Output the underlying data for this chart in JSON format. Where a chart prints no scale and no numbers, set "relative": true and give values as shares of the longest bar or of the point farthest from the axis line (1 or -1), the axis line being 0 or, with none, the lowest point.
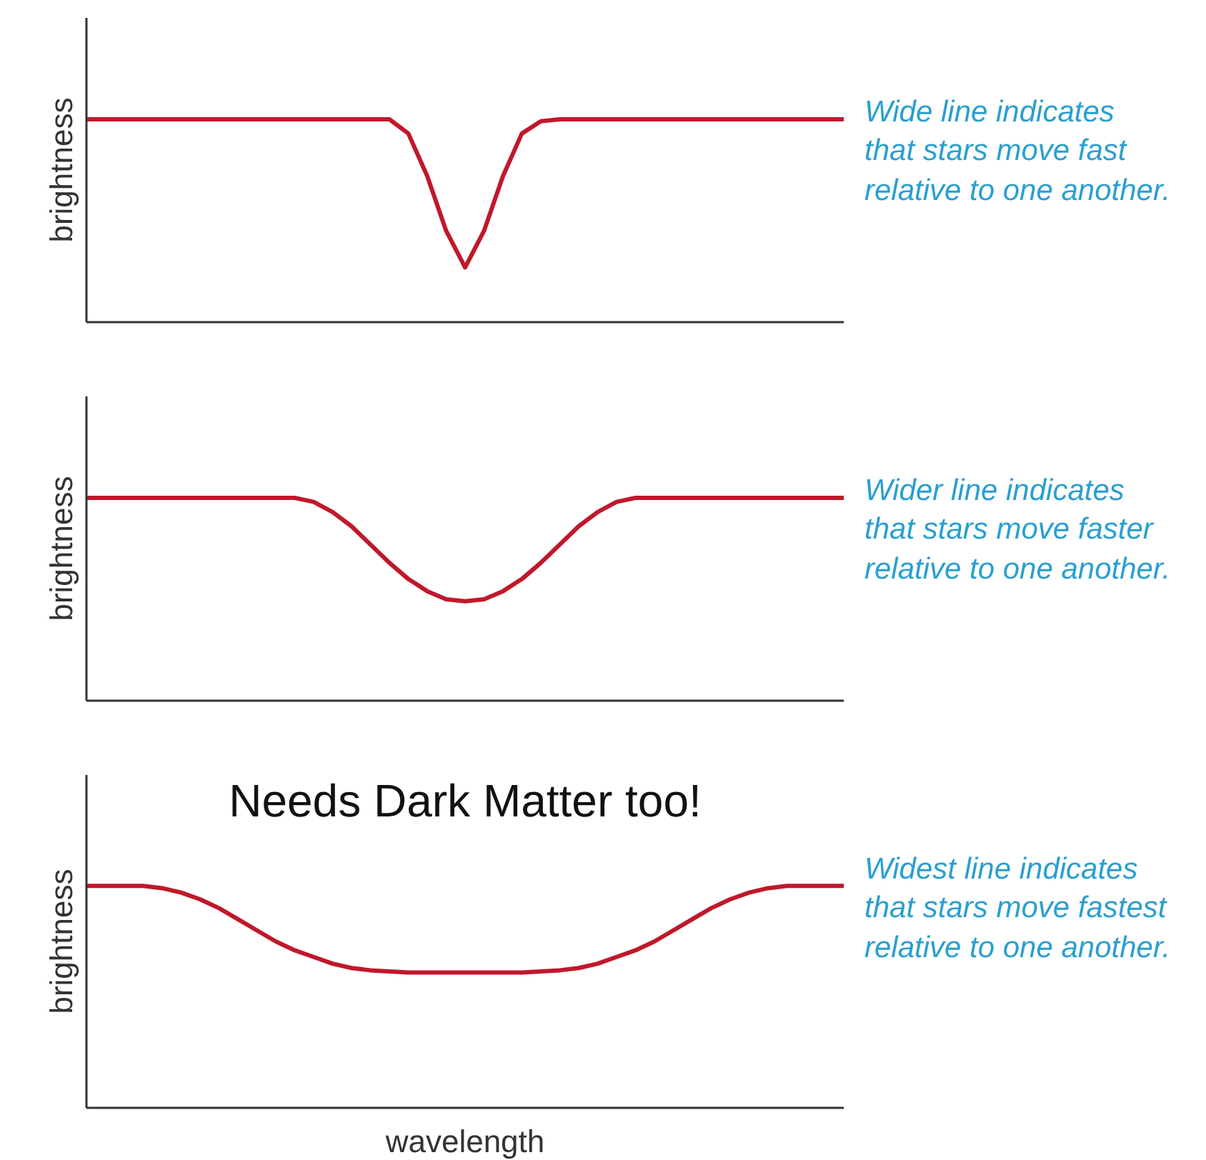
{
  "chart_data": [
    {
      "type": "line",
      "relative": true,
      "ylabel": "brightness",
      "grid": false,
      "marker": "none",
      "line_style": "solid",
      "categories": [
        null,
        null,
        null,
        null,
        null,
        null,
        null,
        null,
        null,
        null,
        null,
        null,
        null,
        null,
        null,
        null,
        null,
        null,
        null,
        null,
        null,
        null,
        null,
        null,
        null,
        null,
        null,
        null,
        null,
        null,
        null,
        null,
        null,
        null,
        null,
        null,
        null,
        null,
        null,
        null,
        null
      ],
      "series": [
        {
          "color": "#c0182a",
          "values": [
            1,
            1,
            1,
            1,
            1,
            1,
            1,
            1,
            1,
            1,
            1,
            1,
            1,
            1,
            1,
            1,
            1,
            0.93,
            0.72,
            0.45,
            0.27,
            0.45,
            0.72,
            0.93,
            0.99,
            1,
            1,
            1,
            1,
            1,
            1,
            1,
            1,
            1,
            1,
            1,
            1,
            1,
            1,
            1,
            1
          ]
        }
      ],
      "annotations": [
        "Wide line indicates\nthat stars move fast\nrelative to one another."
      ]
    },
    {
      "type": "line",
      "relative": true,
      "ylabel": "brightness",
      "grid": false,
      "marker": "none",
      "line_style": "solid",
      "categories": [
        null,
        null,
        null,
        null,
        null,
        null,
        null,
        null,
        null,
        null,
        null,
        null,
        null,
        null,
        null,
        null,
        null,
        null,
        null,
        null,
        null,
        null,
        null,
        null,
        null,
        null,
        null,
        null,
        null,
        null,
        null,
        null,
        null,
        null,
        null,
        null,
        null,
        null,
        null,
        null,
        null
      ],
      "series": [
        {
          "color": "#c0182a",
          "values": [
            1,
            1,
            1,
            1,
            1,
            1,
            1,
            1,
            1,
            1,
            1,
            1,
            0.98,
            0.93,
            0.86,
            0.77,
            0.68,
            0.6,
            0.54,
            0.5,
            0.49,
            0.5,
            0.54,
            0.6,
            0.68,
            0.77,
            0.86,
            0.93,
            0.98,
            1,
            1,
            1,
            1,
            1,
            1,
            1,
            1,
            1,
            1,
            1,
            1
          ]
        }
      ],
      "annotations": [
        "Wider line indicates\nthat stars move faster\nrelative to one another."
      ]
    },
    {
      "type": "line",
      "relative": true,
      "title": "Needs Dark Matter too!",
      "ylabel": "brightness",
      "xlabel": "wavelength",
      "grid": false,
      "marker": "none",
      "line_style": "solid",
      "categories": [
        null,
        null,
        null,
        null,
        null,
        null,
        null,
        null,
        null,
        null,
        null,
        null,
        null,
        null,
        null,
        null,
        null,
        null,
        null,
        null,
        null,
        null,
        null,
        null,
        null,
        null,
        null,
        null,
        null,
        null,
        null,
        null,
        null,
        null,
        null,
        null,
        null,
        null,
        null,
        null,
        null
      ],
      "series": [
        {
          "color": "#c0182a",
          "values": [
            1,
            1,
            1,
            1,
            0.99,
            0.97,
            0.94,
            0.9,
            0.85,
            0.8,
            0.75,
            0.71,
            0.68,
            0.65,
            0.63,
            0.62,
            0.615,
            0.61,
            0.61,
            0.61,
            0.61,
            0.61,
            0.61,
            0.61,
            0.615,
            0.62,
            0.63,
            0.65,
            0.68,
            0.71,
            0.75,
            0.8,
            0.85,
            0.9,
            0.94,
            0.97,
            0.99,
            1,
            1,
            1,
            1
          ]
        }
      ],
      "annotations": [
        "Widest line indicates\nthat stars move fastest\nrelative to one another."
      ]
    }
  ]
}
